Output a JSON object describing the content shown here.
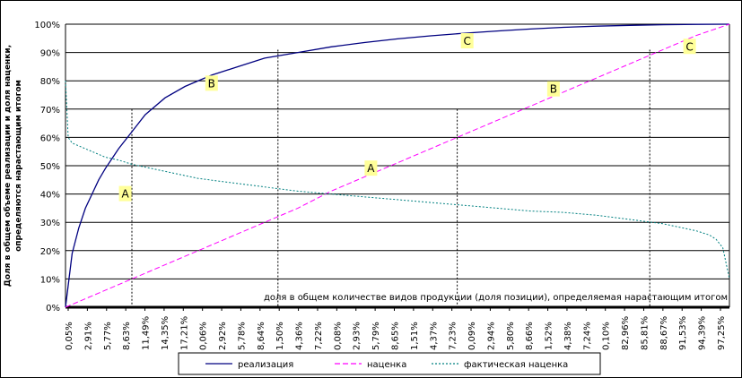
{
  "chart_data": {
    "type": "line",
    "ylabel_lines": [
      "Доля в общем объеме реализации и доля наценки,",
      "определяются нарастающим итогом"
    ],
    "xlabel": "доля в общем количестве видов продукции (доля позиции), определяемая нарастающим итогом",
    "ylim": [
      0,
      100
    ],
    "y_ticks": [
      "0%",
      "10%",
      "20%",
      "30%",
      "40%",
      "50%",
      "60%",
      "70%",
      "80%",
      "90%",
      "100%"
    ],
    "x_ticks": [
      "0,05%",
      "2,91%",
      "5,77%",
      "8,63%",
      "11,49%",
      "14,35%",
      "17,21%",
      "0,06%",
      "2,92%",
      "5,78%",
      "8,64%",
      "1,50%",
      "4,36%",
      "7,22%",
      "0,08%",
      "2,93%",
      "5,79%",
      "8,65%",
      "1,51%",
      "4,37%",
      "7,23%",
      "0,09%",
      "2,94%",
      "5,80%",
      "8,66%",
      "1,52%",
      "4,38%",
      "7,24%",
      "0,10%",
      "82,96%",
      "85,81%",
      "88,67%",
      "91,53%",
      "94,39%",
      "97,25%"
    ],
    "grid": "horizontal",
    "series": [
      {
        "name": "реализация",
        "color": "#000080",
        "dash": "solid",
        "x": [
          0,
          1,
          2,
          3,
          4,
          5,
          6,
          8,
          10,
          12,
          15,
          18,
          22,
          26,
          30,
          35,
          40,
          45,
          50,
          55,
          60,
          65,
          70,
          75,
          80,
          85,
          90,
          95,
          100
        ],
        "values": [
          0,
          19,
          28,
          35,
          40,
          45,
          49,
          56,
          62,
          68,
          74,
          78,
          82,
          85,
          88,
          90,
          92,
          93.5,
          94.8,
          95.9,
          96.8,
          97.6,
          98.3,
          98.9,
          99.3,
          99.6,
          99.8,
          99.95,
          100
        ]
      },
      {
        "name": "наценка",
        "color": "#ff00ff",
        "dash": "dashed",
        "x": [
          0,
          5,
          10,
          15,
          20,
          25,
          30,
          35,
          40,
          45,
          50,
          55,
          60,
          65,
          70,
          75,
          80,
          85,
          90,
          95,
          100
        ],
        "values": [
          0,
          5,
          10,
          15,
          20,
          25,
          30,
          35,
          41,
          46,
          51,
          56,
          61,
          66,
          71,
          76,
          81,
          86,
          91,
          96,
          100
        ]
      },
      {
        "name": "фактическая наценка",
        "color": "#008080",
        "dash": "dotted",
        "x": [
          0,
          0.4,
          1,
          2,
          4,
          6,
          8,
          10,
          12,
          15,
          20,
          25,
          30,
          35,
          40,
          45,
          50,
          55,
          60,
          65,
          70,
          75,
          80,
          85,
          90,
          93,
          95,
          97,
          98,
          99,
          100
        ],
        "values": [
          80,
          60,
          58,
          57,
          55,
          53,
          52,
          50.5,
          49.5,
          48,
          45.5,
          44,
          42.5,
          41,
          40,
          39,
          38,
          37,
          36,
          35,
          34,
          33.5,
          32.5,
          31,
          29.5,
          28,
          27,
          25.5,
          24,
          21,
          10
        ]
      }
    ],
    "annotations": [
      {
        "text": "A",
        "x": 9,
        "y": 40
      },
      {
        "text": "B",
        "x": 22,
        "y": 79
      },
      {
        "text": "C",
        "x": 60.5,
        "y": 94
      },
      {
        "text": "A",
        "x": 46,
        "y": 49
      },
      {
        "text": "B",
        "x": 73.5,
        "y": 77
      },
      {
        "text": "C",
        "x": 94,
        "y": 92
      }
    ],
    "boundaries": [
      {
        "x": 10,
        "y": 70
      },
      {
        "x": 32,
        "y": 91
      },
      {
        "x": 59,
        "y": 70
      },
      {
        "x": 88,
        "y": 91
      }
    ],
    "legend_position": "bottom",
    "annotation_fill": "#ffff99"
  }
}
